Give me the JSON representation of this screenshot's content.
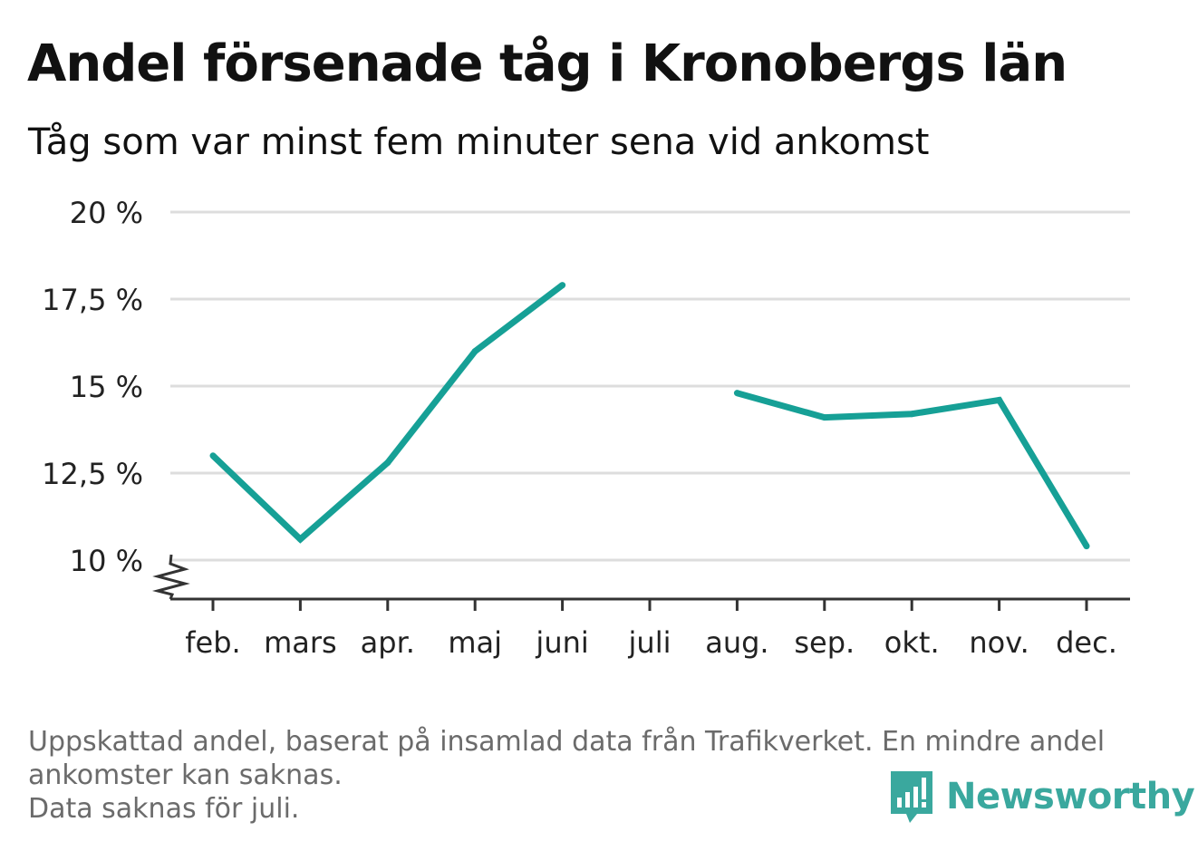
{
  "header": {
    "title": "Andel försenade tåg i Kronobergs län",
    "subtitle": "Tåg som var minst fem minuter sena vid ankomst"
  },
  "footer": {
    "note_line1": "Uppskattad andel, baserat på insamlad data från Trafikverket. En mindre andel",
    "note_line2": "ankomster kan saknas.",
    "note_line3": "Data saknas för juli.",
    "brand": "Newsworthy"
  },
  "colors": {
    "line": "#16a096",
    "grid": "#dddddd",
    "axis": "#333333",
    "brand": "#3aa89e"
  },
  "chart_data": {
    "type": "line",
    "title": "Andel försenade tåg i Kronobergs län",
    "subtitle": "Tåg som var minst fem minuter sena vid ankomst",
    "categories": [
      "feb.",
      "mars",
      "apr.",
      "maj",
      "juni",
      "juli",
      "aug.",
      "sep.",
      "okt.",
      "nov.",
      "dec."
    ],
    "series": [
      {
        "values": [
          13.0,
          10.6,
          12.8,
          16.0,
          17.9,
          null,
          14.8,
          14.1,
          14.2,
          14.6,
          10.4
        ]
      }
    ],
    "y_ticks": [
      10,
      12.5,
      15,
      17.5,
      20
    ],
    "y_tick_labels": [
      "10 %",
      "12,5 %",
      "15 %",
      "17,5 %",
      "20 %"
    ],
    "ylim": [
      10,
      20
    ],
    "y_axis_break": true,
    "grid": true,
    "legend": "none"
  }
}
